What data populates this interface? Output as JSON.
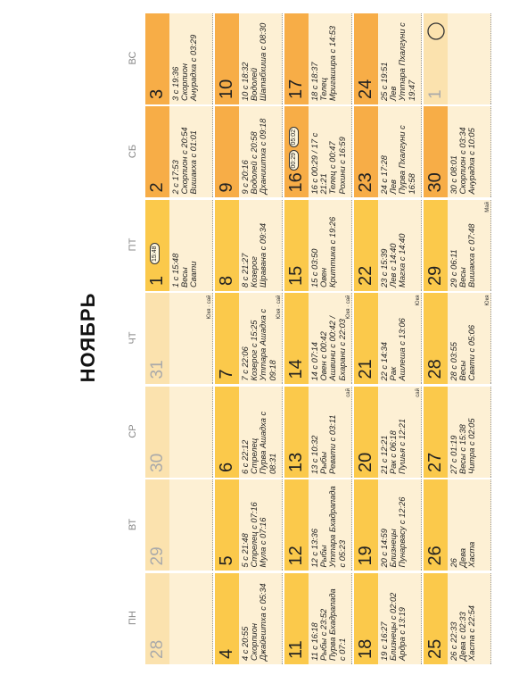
{
  "title": "НОЯБРЬ",
  "weekdays": [
    "ПН",
    "ВТ",
    "СР",
    "ЧТ",
    "ПТ",
    "СБ",
    "ВС"
  ],
  "weeks": [
    [
      {
        "day": 28
      },
      {
        "day": 29
      },
      {
        "day": 30
      },
      {
        "day": 31,
        "note": "Юкя · сай"
      },
      {
        "day": 1,
        "badges": [
          "15:48"
        ],
        "lines": [
          "1 с 15:48",
          "Весы",
          "Свати"
        ]
      },
      {
        "day": 2,
        "lines": [
          "2 с 17:53",
          "Скорпион с 20:54",
          "Вишакха с 01:01"
        ]
      },
      {
        "day": 3,
        "lines": [
          "3 с 19:36",
          "Скорпион",
          "Анурадха с 03:29"
        ]
      }
    ],
    [
      {
        "day": 4,
        "lines": [
          "4 с 20:55",
          "Скорпион",
          "Джайештха с 05:34"
        ]
      },
      {
        "day": 5,
        "lines": [
          "5 с 21:48",
          "Стрелец с 07:16",
          "Мула с 07:16"
        ]
      },
      {
        "day": 6,
        "lines": [
          "6 с 22:12",
          "Стрелец",
          "Пурва Ашадха с",
          "08:31"
        ]
      },
      {
        "day": 7,
        "note": "Юкя · сай",
        "lines": [
          "7 с 22:06",
          "Козерог с 15:25",
          "Уттара Ашадха с",
          "09:18"
        ]
      },
      {
        "day": 8,
        "lines": [
          "8 с 21:27",
          "Козерог",
          "Шравана с 09:34"
        ]
      },
      {
        "day": 9,
        "lines": [
          "9 с 20:16",
          "Водолей с 20:58",
          "Дхаништха с 09:18"
        ]
      },
      {
        "day": 10,
        "lines": [
          "10 с 18:32",
          "Водолей",
          "Шатабхиша с 08:30"
        ]
      }
    ],
    [
      {
        "day": 11,
        "lines": [
          "11 с 16:18",
          "Рыбы с 23:52",
          "Пурва Бхадрапада",
          "с 07:1"
        ]
      },
      {
        "day": 12,
        "lines": [
          "12 с 13:36",
          "Рыбы",
          "Уттара Бхадрапада",
          "с 05:23"
        ]
      },
      {
        "day": 13,
        "note": "сай",
        "lines": [
          "13 с 10:32",
          "Рыбы",
          "Ревати с 03:11"
        ]
      },
      {
        "day": 14,
        "note": "Юкя · сай",
        "lines": [
          "14 с 07:14",
          "Овен с 00:42",
          "Ашвини с 00:42 /",
          "Бхарани с 22:03"
        ]
      },
      {
        "day": 15,
        "lines": [
          "15 с 03:50",
          "Овен",
          "Криттика с 19:26"
        ]
      },
      {
        "day": 16,
        "badges": [
          "00:29",
          "05:02"
        ],
        "lines": [
          "16 с 00:29 / 17 с",
          "21:21",
          "Телец с 00:47",
          "Рохини с 16:59"
        ]
      },
      {
        "day": 17,
        "lines": [
          "18 с 18:37",
          "Телец",
          "Мригашира с 14:53"
        ]
      }
    ],
    [
      {
        "day": 18,
        "lines": [
          "19 с 16:27",
          "Близнецы с 02:02",
          "Ардра с 13:19"
        ]
      },
      {
        "day": 19,
        "lines": [
          "20 с 14:59",
          "Близнецы",
          "Пунарвасу с 12:26"
        ]
      },
      {
        "day": 20,
        "note": "сай",
        "lines": [
          "21 с 12:21",
          "Рак с 06:18",
          "Пушья с 12:21"
        ]
      },
      {
        "day": 21,
        "note": "Юкя",
        "lines": [
          "22 с 14:34",
          "Рак",
          "Ашлеша с 13:06"
        ]
      },
      {
        "day": 22,
        "lines": [
          "23 с 15:39",
          "Лев с 14:40",
          "Магха с 14:40"
        ]
      },
      {
        "day": 23,
        "lines": [
          "24 с 17:28",
          "Лев",
          "Пурва Пхалгуни с",
          "16:58"
        ]
      },
      {
        "day": 24,
        "lines": [
          "25 с 19:51",
          "Лев",
          "Уттара Пхалгуни с",
          "19:47"
        ]
      }
    ],
    [
      {
        "day": 25,
        "lines": [
          "26 с 22:33",
          "Дева с 02:33",
          "Хаста с 22:54"
        ]
      },
      {
        "day": 26,
        "lines": [
          "26",
          "Дева",
          "Хаста"
        ]
      },
      {
        "day": 27,
        "lines": [
          "27 с 01:19",
          "Весы с 15:38",
          "Читра с 02:05"
        ]
      },
      {
        "day": 28,
        "note": "Юкя",
        "lines": [
          "28 с 03:55",
          "Весы",
          "Свати с 05:06"
        ]
      },
      {
        "day": 29,
        "note": "Май",
        "lines": [
          "29 с 06:11",
          "Весы",
          "Вишакха с 07:48"
        ]
      },
      {
        "day": 30,
        "lines": [
          "30 с 08:01",
          "Скорпион с 03:34",
          "Анурадха с 10:05"
        ]
      },
      {
        "day": 1,
        "moon": "new"
      }
    ]
  ]
}
